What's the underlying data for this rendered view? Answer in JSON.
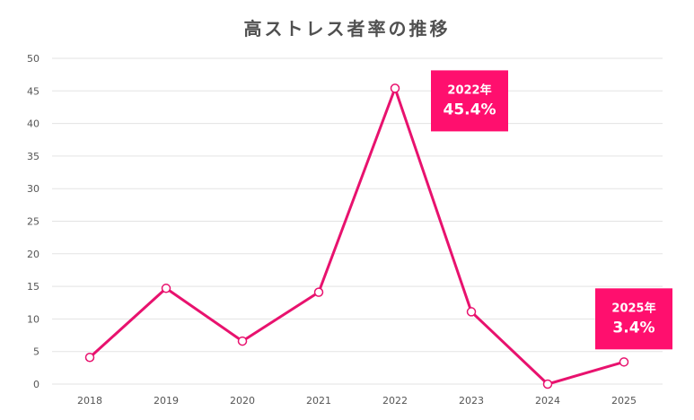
{
  "chart_data": {
    "type": "line",
    "title": "高ストレス者率の推移",
    "xlabel": "",
    "ylabel": "",
    "categories": [
      "2018",
      "2019",
      "2020",
      "2021",
      "2022",
      "2023",
      "2024",
      "2025"
    ],
    "series": [
      {
        "values": [
          4.1,
          14.7,
          6.6,
          14.1,
          45.4,
          11.1,
          0,
          3.4
        ]
      }
    ],
    "ylim": [
      0,
      50
    ],
    "yticks": [
      "0",
      "5",
      "10",
      "15",
      "20",
      "25",
      "30",
      "35",
      "40",
      "45",
      "50"
    ],
    "grid": true,
    "annotations": [
      {
        "category": "2022",
        "year_label": "2022年",
        "value_label": "45.4%"
      },
      {
        "category": "2025",
        "year_label": "2025年",
        "value_label": "3.4%"
      }
    ],
    "colors": {
      "line": "#e8126e",
      "callout": "#ff0f6e",
      "grid": "#e3e3e3",
      "marker_fill": "#ffffff"
    }
  }
}
